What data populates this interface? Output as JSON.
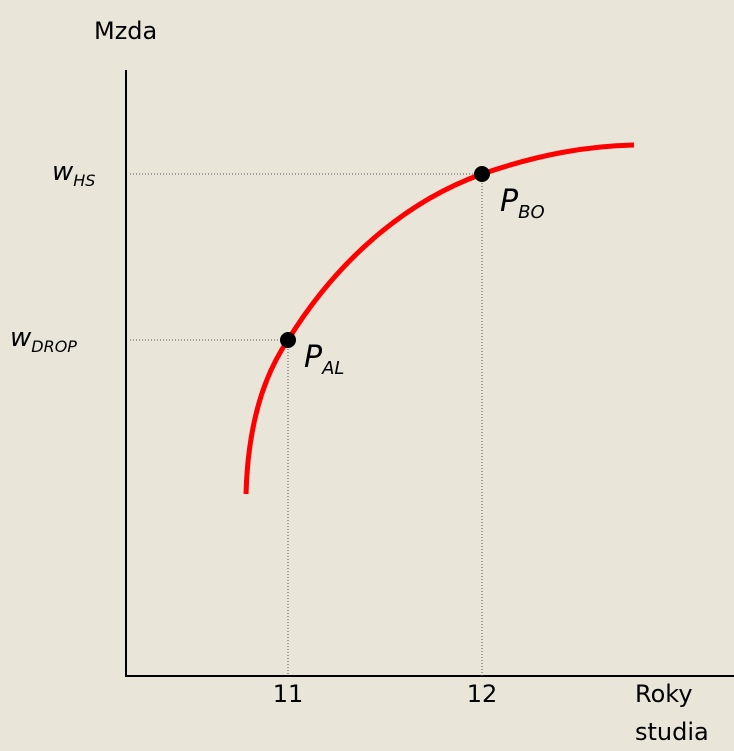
{
  "axes": {
    "y_label": "Mzda",
    "x_label": [
      "Roky",
      "studia"
    ],
    "x_ticks": [
      "11",
      "12"
    ]
  },
  "wage_labels": [
    {
      "base": "w",
      "sub": "HS"
    },
    {
      "base": "w",
      "sub": "DROP"
    }
  ],
  "points": [
    {
      "base": "P",
      "sub": "AL"
    },
    {
      "base": "P",
      "sub": "BO"
    }
  ]
}
